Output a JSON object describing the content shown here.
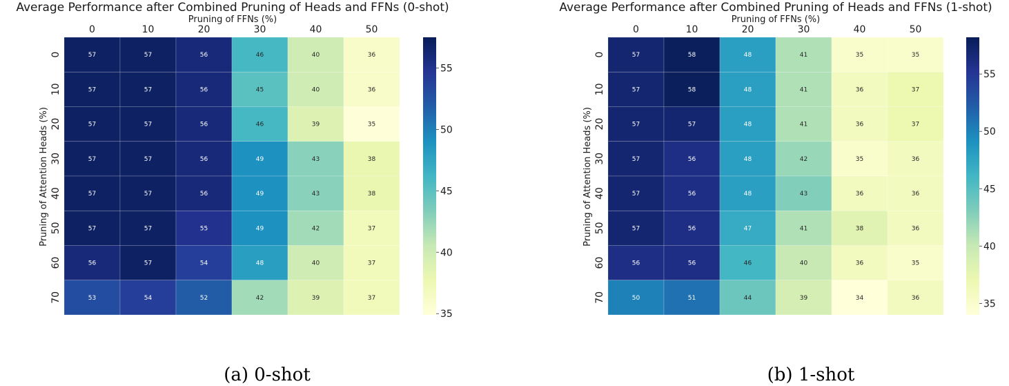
{
  "chart_data": [
    {
      "type": "heatmap",
      "title": "Average Performance after Combined Pruning of Heads and FFNs (0-shot)",
      "xlabel": "Pruning of FFNs (%)",
      "ylabel": "Pruning of Attention Heads (%)",
      "x_ticks": [
        "0",
        "10",
        "20",
        "30",
        "40",
        "50"
      ],
      "y_ticks": [
        "0",
        "10",
        "20",
        "30",
        "40",
        "50",
        "60",
        "70"
      ],
      "values": [
        [
          57,
          57,
          56,
          46,
          40,
          36
        ],
        [
          57,
          57,
          56,
          45,
          40,
          36
        ],
        [
          57,
          57,
          56,
          46,
          39,
          35
        ],
        [
          57,
          57,
          56,
          49,
          43,
          38
        ],
        [
          57,
          57,
          56,
          49,
          43,
          38
        ],
        [
          57,
          57,
          55,
          49,
          42,
          37
        ],
        [
          56,
          57,
          54,
          48,
          40,
          37
        ],
        [
          53,
          54,
          52,
          42,
          39,
          37
        ]
      ],
      "colorbar_ticks": [
        35,
        40,
        45,
        50,
        55
      ],
      "vmin": 34.9,
      "vmax": 57.5,
      "colormap": "YlGnBu",
      "caption": "(a)  0-shot"
    },
    {
      "type": "heatmap",
      "title": "Average Performance after Combined Pruning of Heads and FFNs (1-shot)",
      "xlabel": "Pruning of FFNs (%)",
      "ylabel": "Pruning of Attention Heads (%)",
      "x_ticks": [
        "0",
        "10",
        "20",
        "30",
        "40",
        "50"
      ],
      "y_ticks": [
        "0",
        "10",
        "20",
        "30",
        "40",
        "50",
        "60",
        "70"
      ],
      "values": [
        [
          57,
          58,
          48,
          41,
          35,
          35
        ],
        [
          57,
          58,
          48,
          41,
          36,
          37
        ],
        [
          57,
          57,
          48,
          41,
          36,
          37
        ],
        [
          57,
          56,
          48,
          42,
          35,
          36
        ],
        [
          57,
          56,
          48,
          43,
          36,
          36
        ],
        [
          57,
          56,
          47,
          41,
          38,
          36
        ],
        [
          56,
          56,
          46,
          40,
          36,
          35
        ],
        [
          50,
          51,
          44,
          39,
          34,
          36
        ]
      ],
      "colorbar_ticks": [
        35,
        40,
        45,
        50,
        55
      ],
      "vmin": 34.0,
      "vmax": 58.2,
      "colormap": "YlGnBu",
      "caption": "(b)  1-shot"
    }
  ]
}
